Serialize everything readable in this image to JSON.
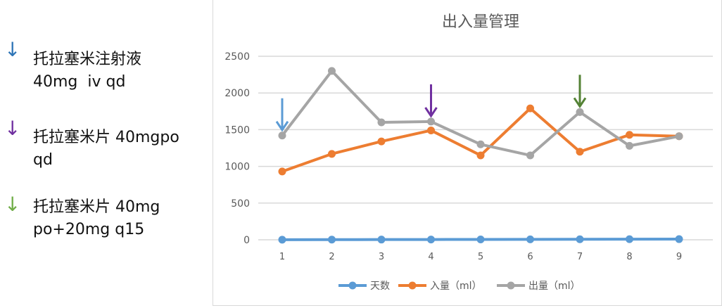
{
  "annotations": [
    {
      "color": "#2e75b6",
      "icon": "arrow-down-icon",
      "line1": "托拉塞米注射液",
      "line2": "40mg  iv qd"
    },
    {
      "color": "#7030a0",
      "icon": "arrow-down-icon",
      "line1": "托拉塞米片 40mgpo",
      "line2": "qd"
    },
    {
      "color": "#70ad47",
      "icon": "arrow-down-icon",
      "line1": "托拉塞米片 40mg",
      "line2": "po+20mg q15"
    }
  ],
  "chart_data": {
    "type": "line",
    "title": "出入量管理",
    "categories": [
      "1",
      "2",
      "3",
      "4",
      "5",
      "6",
      "7",
      "8",
      "9"
    ],
    "ylim": [
      0,
      2500
    ],
    "yticks": [
      "0",
      "500",
      "1000",
      "1500",
      "2000",
      "2500"
    ],
    "grid": true,
    "legend": "bottom",
    "series": [
      {
        "name": "天数",
        "color": "#5b9bd5",
        "values": [
          1,
          2,
          3,
          4,
          5,
          6,
          7,
          8,
          9
        ]
      },
      {
        "name": "入量（ml）",
        "color": "#ed7d31",
        "values": [
          930,
          1170,
          1340,
          1490,
          1150,
          1790,
          1200,
          1430,
          1410
        ]
      },
      {
        "name": "出量（ml）",
        "color": "#a5a5a5",
        "values": [
          1420,
          2300,
          1600,
          1610,
          1300,
          1150,
          1740,
          1280,
          1410
        ]
      }
    ],
    "markers": [
      {
        "category": "1",
        "color": "#5b9bd5"
      },
      {
        "category": "4",
        "color": "#7030a0"
      },
      {
        "category": "7",
        "color": "#548235"
      }
    ]
  }
}
